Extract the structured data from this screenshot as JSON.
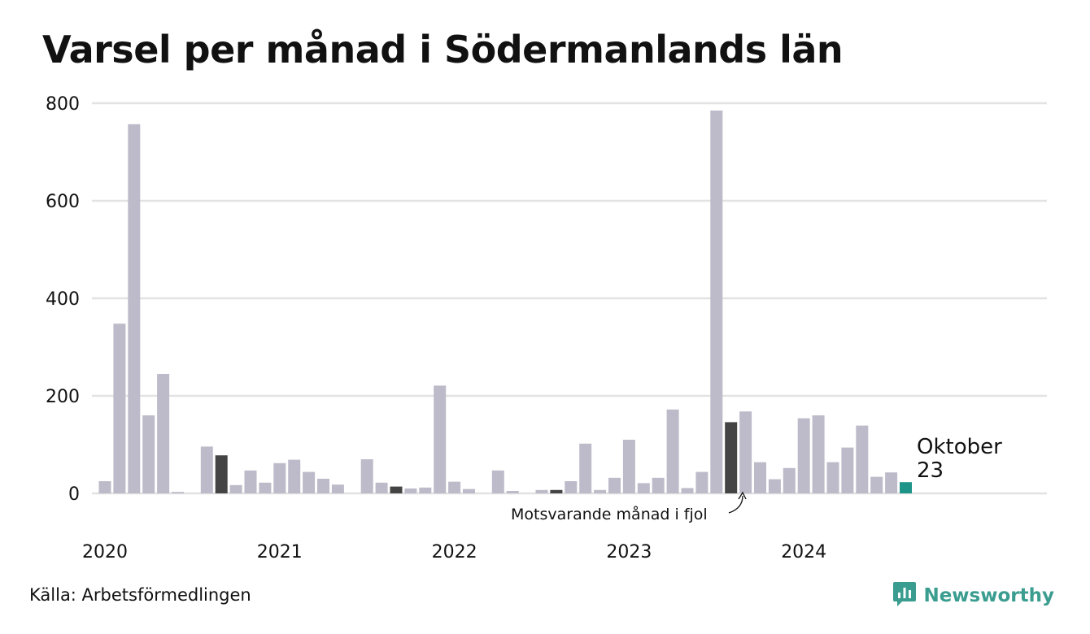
{
  "title": "Varsel per månad i Södermanlands län",
  "source": "Källa: Arbetsförmedlingen",
  "brand": {
    "name": "Newsworthy",
    "icon": "newsworthy-logo-icon"
  },
  "colors": {
    "bar": "#bdbbc9",
    "previous_year": "#444444",
    "current": "#1e9488",
    "grid": "#e2e2e2"
  },
  "chart_data": {
    "type": "bar",
    "title": "Varsel per månad i Södermanlands län",
    "xlabel": "",
    "ylabel": "",
    "ylim": [
      0,
      800
    ],
    "yticks": [
      0,
      200,
      400,
      600,
      800
    ],
    "grid": true,
    "x_tick_labels": [
      "2020",
      "2021",
      "2022",
      "2023",
      "2024"
    ],
    "values": [
      25,
      348,
      757,
      160,
      245,
      3,
      0,
      96,
      78,
      17,
      47,
      22,
      62,
      69,
      44,
      30,
      18,
      0,
      70,
      22,
      14,
      10,
      12,
      221,
      24,
      9,
      0,
      47,
      5,
      0,
      7,
      7,
      25,
      102,
      7,
      32,
      110,
      21,
      32,
      172,
      11,
      44,
      785,
      146,
      168,
      64,
      29,
      52,
      154,
      160,
      64,
      94,
      139,
      34,
      43,
      23
    ],
    "highlight": {
      "previous_year_indices": [
        8,
        20,
        31,
        43
      ],
      "current_index": 55
    },
    "annotations": {
      "previous_year": "Motsvarande månad i fjol",
      "last_month": "Oktober",
      "last_value": "23"
    }
  }
}
